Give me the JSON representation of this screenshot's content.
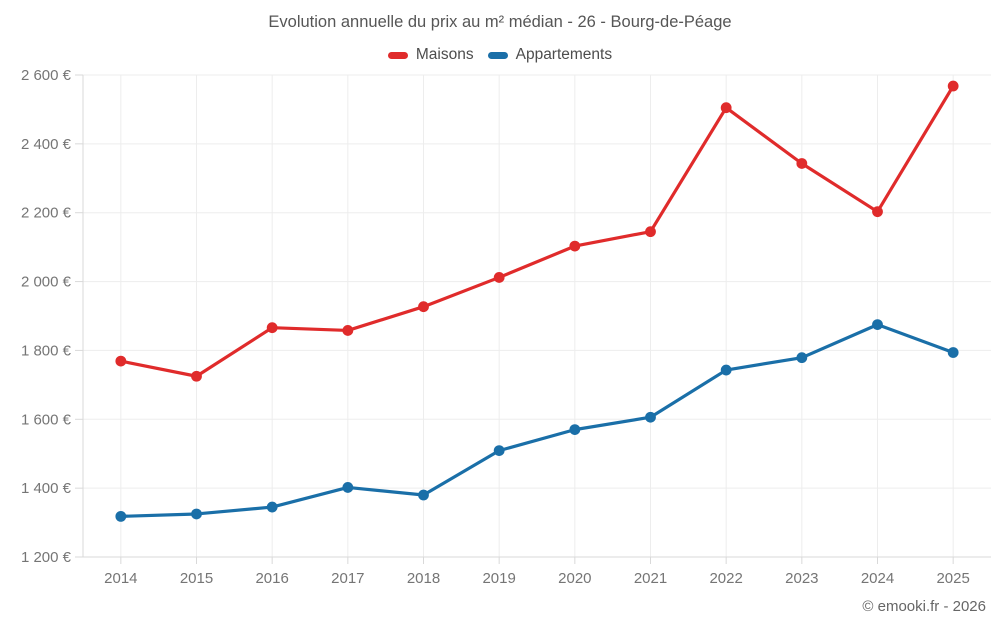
{
  "title": "Evolution annuelle du prix au m² médian - 26 - Bourg-de-Péage",
  "footer": "© emooki.fr - 2026",
  "legend": {
    "items": [
      {
        "label": "Maisons",
        "color": "#e02b2b"
      },
      {
        "label": "Appartements",
        "color": "#1a6fa8"
      }
    ]
  },
  "chart_data": {
    "type": "line",
    "title": "Evolution annuelle du prix au m² médian - 26 - Bourg-de-Péage",
    "categories": [
      "2014",
      "2015",
      "2016",
      "2017",
      "2018",
      "2019",
      "2020",
      "2021",
      "2022",
      "2023",
      "2024",
      "2025"
    ],
    "series": [
      {
        "name": "Maisons",
        "color": "#e02b2b",
        "values": [
          1769,
          1725,
          1866,
          1858,
          1927,
          2012,
          2103,
          2145,
          2505,
          2343,
          2203,
          2568
        ]
      },
      {
        "name": "Appartements",
        "color": "#1a6fa8",
        "values": [
          1318,
          1325,
          1345,
          1402,
          1380,
          1509,
          1570,
          1606,
          1743,
          1779,
          1875,
          1794
        ]
      }
    ],
    "xlabel": "",
    "ylabel": "",
    "ylim": [
      1200,
      2600
    ],
    "y_ticks": [
      1200,
      1400,
      1600,
      1800,
      2000,
      2200,
      2400,
      2600
    ],
    "y_tick_labels": [
      "1 200 €",
      "1 400 €",
      "1 600 €",
      "1 800 €",
      "2 000 €",
      "2 200 €",
      "2 400 €",
      "2 600 €"
    ],
    "grid": true,
    "legend_position": "top"
  }
}
